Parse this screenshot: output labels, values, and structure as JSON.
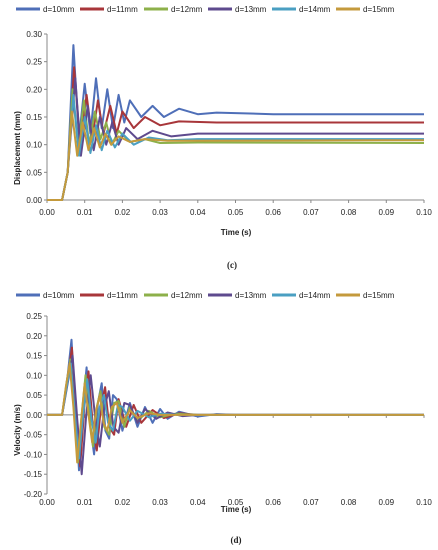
{
  "chart_data": [
    {
      "type": "line",
      "panel_label": "(c)",
      "xlabel": "Time (s)",
      "ylabel": "Displacement (mm)",
      "xlim": [
        0,
        0.1
      ],
      "ylim": [
        0,
        0.3
      ],
      "xticks": [
        "0.00",
        "0.01",
        "0.02",
        "0.03",
        "0.04",
        "0.05",
        "0.06",
        "0.07",
        "0.08",
        "0.09",
        "0.10"
      ],
      "yticks": [
        "0.00",
        "0.05",
        "0.10",
        "0.15",
        "0.20",
        "0.25",
        "0.30"
      ],
      "grid": false,
      "legend_position": "top",
      "series": [
        {
          "name": "d=10mm",
          "color": "#4F6FB8",
          "values": [
            [
              0,
              0
            ],
            [
              0.004,
              0
            ],
            [
              0.0055,
              0.05
            ],
            [
              0.007,
              0.28
            ],
            [
              0.0085,
              0.11
            ],
            [
              0.01,
              0.21
            ],
            [
              0.0115,
              0.12
            ],
            [
              0.013,
              0.22
            ],
            [
              0.0145,
              0.13
            ],
            [
              0.016,
              0.2
            ],
            [
              0.0175,
              0.13
            ],
            [
              0.019,
              0.19
            ],
            [
              0.0205,
              0.14
            ],
            [
              0.022,
              0.18
            ],
            [
              0.025,
              0.15
            ],
            [
              0.028,
              0.17
            ],
            [
              0.031,
              0.15
            ],
            [
              0.035,
              0.165
            ],
            [
              0.04,
              0.155
            ],
            [
              0.045,
              0.158
            ],
            [
              0.06,
              0.155
            ],
            [
              0.1,
              0.155
            ]
          ]
        },
        {
          "name": "d=11mm",
          "color": "#A8363A",
          "values": [
            [
              0,
              0
            ],
            [
              0.004,
              0
            ],
            [
              0.0055,
              0.05
            ],
            [
              0.0072,
              0.24
            ],
            [
              0.0088,
              0.1
            ],
            [
              0.0105,
              0.19
            ],
            [
              0.012,
              0.11
            ],
            [
              0.0135,
              0.18
            ],
            [
              0.015,
              0.12
            ],
            [
              0.0168,
              0.17
            ],
            [
              0.0185,
              0.12
            ],
            [
              0.02,
              0.16
            ],
            [
              0.023,
              0.13
            ],
            [
              0.026,
              0.15
            ],
            [
              0.03,
              0.135
            ],
            [
              0.035,
              0.142
            ],
            [
              0.045,
              0.14
            ],
            [
              0.1,
              0.14
            ]
          ]
        },
        {
          "name": "d=12mm",
          "color": "#8DB04A",
          "values": [
            [
              0,
              0
            ],
            [
              0.004,
              0
            ],
            [
              0.0055,
              0.05
            ],
            [
              0.0068,
              0.2
            ],
            [
              0.0083,
              0.09
            ],
            [
              0.0098,
              0.18
            ],
            [
              0.0112,
              0.1
            ],
            [
              0.0127,
              0.16
            ],
            [
              0.0142,
              0.11
            ],
            [
              0.0157,
              0.14
            ],
            [
              0.0172,
              0.1
            ],
            [
              0.019,
              0.125
            ],
            [
              0.022,
              0.105
            ],
            [
              0.026,
              0.11
            ],
            [
              0.03,
              0.103
            ],
            [
              0.04,
              0.104
            ],
            [
              0.1,
              0.103
            ]
          ]
        },
        {
          "name": "d=13mm",
          "color": "#5E4A8E",
          "values": [
            [
              0,
              0
            ],
            [
              0.004,
              0
            ],
            [
              0.0055,
              0.05
            ],
            [
              0.0075,
              0.22
            ],
            [
              0.009,
              0.08
            ],
            [
              0.0108,
              0.17
            ],
            [
              0.0124,
              0.09
            ],
            [
              0.014,
              0.15
            ],
            [
              0.0157,
              0.1
            ],
            [
              0.0173,
              0.14
            ],
            [
              0.019,
              0.1
            ],
            [
              0.021,
              0.13
            ],
            [
              0.024,
              0.11
            ],
            [
              0.028,
              0.125
            ],
            [
              0.033,
              0.115
            ],
            [
              0.04,
              0.12
            ],
            [
              0.1,
              0.12
            ]
          ]
        },
        {
          "name": "d=14mm",
          "color": "#4A9FC2",
          "values": [
            [
              0,
              0
            ],
            [
              0.004,
              0
            ],
            [
              0.0055,
              0.05
            ],
            [
              0.007,
              0.19
            ],
            [
              0.0085,
              0.08
            ],
            [
              0.01,
              0.15
            ],
            [
              0.0115,
              0.085
            ],
            [
              0.013,
              0.135
            ],
            [
              0.0145,
              0.09
            ],
            [
              0.016,
              0.125
            ],
            [
              0.018,
              0.095
            ],
            [
              0.02,
              0.12
            ],
            [
              0.023,
              0.1
            ],
            [
              0.027,
              0.113
            ],
            [
              0.032,
              0.108
            ],
            [
              0.04,
              0.11
            ],
            [
              0.1,
              0.11
            ]
          ]
        },
        {
          "name": "d=15mm",
          "color": "#C49A3C",
          "values": [
            [
              0,
              0
            ],
            [
              0.004,
              0
            ],
            [
              0.0055,
              0.05
            ],
            [
              0.0066,
              0.16
            ],
            [
              0.008,
              0.08
            ],
            [
              0.0095,
              0.14
            ],
            [
              0.011,
              0.09
            ],
            [
              0.0125,
              0.13
            ],
            [
              0.014,
              0.095
            ],
            [
              0.0155,
              0.12
            ],
            [
              0.017,
              0.1
            ],
            [
              0.019,
              0.115
            ],
            [
              0.022,
              0.105
            ],
            [
              0.026,
              0.11
            ],
            [
              0.032,
              0.107
            ],
            [
              0.1,
              0.108
            ]
          ]
        }
      ]
    },
    {
      "type": "line",
      "panel_label": "(d)",
      "xlabel": "Time (s)",
      "ylabel": "Velocity (m/s)",
      "xlim": [
        0,
        0.1
      ],
      "ylim": [
        -0.2,
        0.25
      ],
      "xticks": [
        "0.00",
        "0.01",
        "0.02",
        "0.03",
        "0.04",
        "0.05",
        "0.06",
        "0.07",
        "0.08",
        "0.09",
        "0.10"
      ],
      "yticks": [
        "-0.20",
        "-0.15",
        "-0.10",
        "-0.05",
        "0.00",
        "0.05",
        "0.10",
        "0.15",
        "0.20",
        "0.25"
      ],
      "grid": false,
      "legend_position": "top",
      "series": [
        {
          "name": "d=10mm",
          "color": "#4F6FB8",
          "values": [
            [
              0,
              0
            ],
            [
              0.004,
              0
            ],
            [
              0.0055,
              0.1
            ],
            [
              0.0065,
              0.19
            ],
            [
              0.0075,
              0.02
            ],
            [
              0.0085,
              -0.14
            ],
            [
              0.0095,
              0.02
            ],
            [
              0.0105,
              0.12
            ],
            [
              0.0115,
              -0.03
            ],
            [
              0.0125,
              -0.1
            ],
            [
              0.0135,
              0.03
            ],
            [
              0.0145,
              0.08
            ],
            [
              0.0155,
              -0.04
            ],
            [
              0.0165,
              -0.06
            ],
            [
              0.0175,
              0.05
            ],
            [
              0.0185,
              0.04
            ],
            [
              0.02,
              -0.04
            ],
            [
              0.022,
              0.03
            ],
            [
              0.024,
              -0.03
            ],
            [
              0.026,
              0.02
            ],
            [
              0.028,
              -0.02
            ],
            [
              0.03,
              0.015
            ],
            [
              0.032,
              -0.01
            ],
            [
              0.035,
              0.008
            ],
            [
              0.04,
              -0.004
            ],
            [
              0.045,
              0.002
            ],
            [
              0.05,
              0
            ],
            [
              0.1,
              0
            ]
          ]
        },
        {
          "name": "d=11mm",
          "color": "#A8363A",
          "values": [
            [
              0,
              0
            ],
            [
              0.004,
              0
            ],
            [
              0.0055,
              0.09
            ],
            [
              0.0066,
              0.17
            ],
            [
              0.0077,
              0.0
            ],
            [
              0.0088,
              -0.13
            ],
            [
              0.0099,
              0.02
            ],
            [
              0.011,
              0.11
            ],
            [
              0.0121,
              -0.02
            ],
            [
              0.0132,
              -0.09
            ],
            [
              0.0143,
              0.02
            ],
            [
              0.0154,
              0.07
            ],
            [
              0.0165,
              -0.03
            ],
            [
              0.0178,
              -0.05
            ],
            [
              0.019,
              0.04
            ],
            [
              0.021,
              -0.03
            ],
            [
              0.023,
              0.025
            ],
            [
              0.025,
              -0.02
            ],
            [
              0.028,
              0.012
            ],
            [
              0.031,
              -0.008
            ],
            [
              0.035,
              0.004
            ],
            [
              0.04,
              0
            ],
            [
              0.1,
              0
            ]
          ]
        },
        {
          "name": "d=12mm",
          "color": "#8DB04A",
          "values": [
            [
              0,
              0
            ],
            [
              0.004,
              0
            ],
            [
              0.0052,
              0.08
            ],
            [
              0.0062,
              0.14
            ],
            [
              0.0072,
              0.02
            ],
            [
              0.0082,
              -0.12
            ],
            [
              0.0092,
              0.0
            ],
            [
              0.0102,
              0.1
            ],
            [
              0.0112,
              0.0
            ],
            [
              0.0122,
              -0.08
            ],
            [
              0.0132,
              0.02
            ],
            [
              0.0142,
              0.06
            ],
            [
              0.0152,
              -0.03
            ],
            [
              0.0165,
              -0.05
            ],
            [
              0.0178,
              0.03
            ],
            [
              0.019,
              0.035
            ],
            [
              0.0205,
              -0.03
            ],
            [
              0.022,
              0.02
            ],
            [
              0.024,
              -0.015
            ],
            [
              0.027,
              0.01
            ],
            [
              0.03,
              -0.006
            ],
            [
              0.034,
              0.003
            ],
            [
              0.04,
              0
            ],
            [
              0.1,
              0
            ]
          ]
        },
        {
          "name": "d=13mm",
          "color": "#5E4A8E",
          "values": [
            [
              0,
              0
            ],
            [
              0.004,
              0
            ],
            [
              0.0055,
              0.08
            ],
            [
              0.0068,
              0.15
            ],
            [
              0.008,
              -0.01
            ],
            [
              0.0092,
              -0.15
            ],
            [
              0.0104,
              0.0
            ],
            [
              0.0116,
              0.1
            ],
            [
              0.0128,
              -0.01
            ],
            [
              0.014,
              -0.08
            ],
            [
              0.0152,
              0.02
            ],
            [
              0.0164,
              0.06
            ],
            [
              0.0176,
              -0.03
            ],
            [
              0.019,
              -0.045
            ],
            [
              0.0205,
              0.03
            ],
            [
              0.022,
              0.025
            ],
            [
              0.024,
              -0.02
            ],
            [
              0.026,
              0.015
            ],
            [
              0.029,
              -0.01
            ],
            [
              0.032,
              0.006
            ],
            [
              0.036,
              -0.003
            ],
            [
              0.04,
              0
            ],
            [
              0.1,
              0
            ]
          ]
        },
        {
          "name": "d=14mm",
          "color": "#4A9FC2",
          "values": [
            [
              0,
              0
            ],
            [
              0.004,
              0
            ],
            [
              0.0052,
              0.07
            ],
            [
              0.0063,
              0.13
            ],
            [
              0.0074,
              0.0
            ],
            [
              0.0085,
              -0.11
            ],
            [
              0.0096,
              0.0
            ],
            [
              0.0107,
              0.09
            ],
            [
              0.0118,
              -0.01
            ],
            [
              0.0129,
              -0.07
            ],
            [
              0.014,
              0.02
            ],
            [
              0.0151,
              0.05
            ],
            [
              0.0162,
              -0.02
            ],
            [
              0.0175,
              -0.04
            ],
            [
              0.0188,
              0.025
            ],
            [
              0.02,
              0.02
            ],
            [
              0.022,
              -0.015
            ],
            [
              0.024,
              0.01
            ],
            [
              0.027,
              -0.006
            ],
            [
              0.03,
              0.003
            ],
            [
              0.035,
              0
            ],
            [
              0.1,
              0
            ]
          ]
        },
        {
          "name": "d=15mm",
          "color": "#C49A3C",
          "values": [
            [
              0,
              0
            ],
            [
              0.004,
              0
            ],
            [
              0.005,
              0.07
            ],
            [
              0.006,
              0.13
            ],
            [
              0.007,
              0.02
            ],
            [
              0.008,
              -0.12
            ],
            [
              0.009,
              -0.02
            ],
            [
              0.01,
              0.08
            ],
            [
              0.011,
              0.0
            ],
            [
              0.012,
              -0.07
            ],
            [
              0.013,
              0.01
            ],
            [
              0.014,
              0.05
            ],
            [
              0.015,
              -0.02
            ],
            [
              0.016,
              -0.04
            ],
            [
              0.0172,
              0.02
            ],
            [
              0.0185,
              0.03
            ],
            [
              0.02,
              -0.02
            ],
            [
              0.022,
              0.012
            ],
            [
              0.024,
              -0.008
            ],
            [
              0.027,
              0.004
            ],
            [
              0.03,
              0
            ],
            [
              0.1,
              0
            ]
          ]
        }
      ]
    }
  ]
}
